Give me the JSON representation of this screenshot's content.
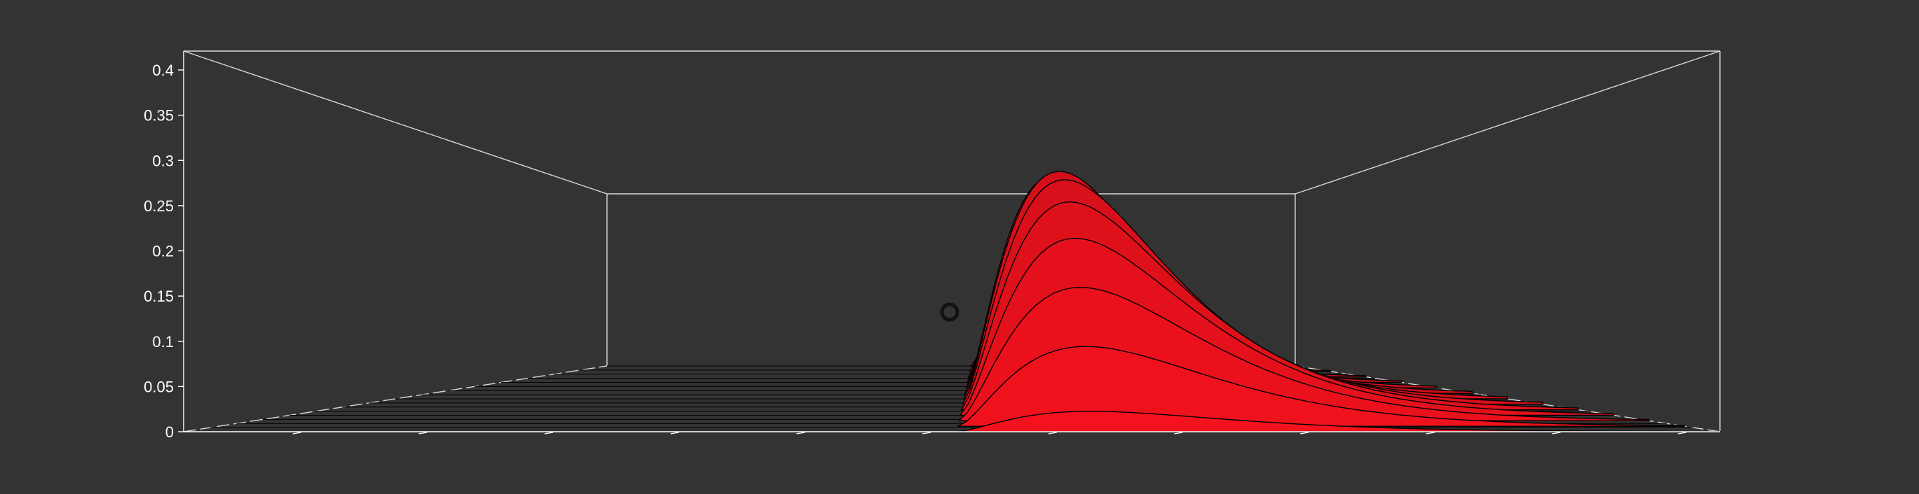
{
  "chart_data": {
    "type": "surface-3d",
    "title": "",
    "zlabel": "",
    "zlim": [
      0,
      0.4
    ],
    "z_ticks": [
      "0",
      "0.05",
      "0.1",
      "0.15",
      "0.2",
      "0.25",
      "0.3",
      "0.35",
      "0.4"
    ],
    "z_tick_values": [
      0,
      0.05,
      0.1,
      0.15,
      0.2,
      0.25,
      0.3,
      0.35,
      0.4
    ],
    "x_tick_count": 12,
    "surface": {
      "peak_z": 0.32,
      "peak_x_fraction": 0.59,
      "colormap": [
        "#f51020",
        "#c0141c",
        "#7a0d12",
        "#1a0a0a"
      ],
      "ridge_count": 13
    },
    "grid": false,
    "legend": "none",
    "background": "#333333",
    "box_color": "#d9d9d9"
  },
  "controls": {
    "marker_icon": "circle-marker-icon"
  }
}
